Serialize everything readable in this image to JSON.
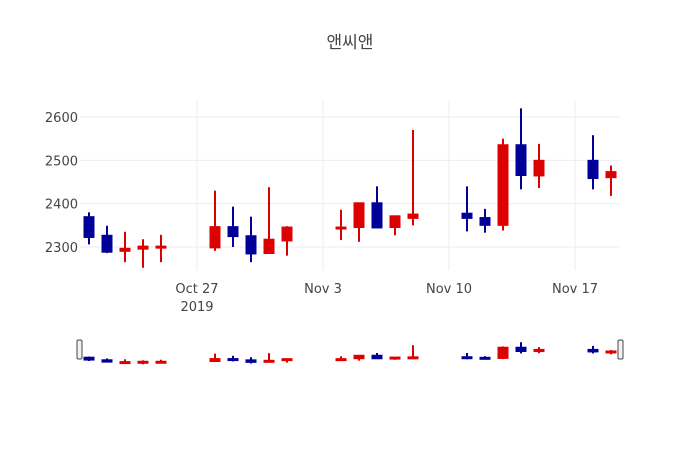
{
  "chart_data": {
    "type": "candlestick",
    "title": "앤씨앤",
    "xlabel": "",
    "ylabel": "",
    "ylim": [
      2230,
      2640
    ],
    "yticks": [
      2300,
      2400,
      2500,
      2600
    ],
    "xticks": [
      {
        "date": "2019-10-27",
        "label": "Oct 27",
        "sublabel": "2019"
      },
      {
        "date": "2019-11-03",
        "label": "Nov 3",
        "sublabel": ""
      },
      {
        "date": "2019-11-10",
        "label": "Nov 10",
        "sublabel": ""
      },
      {
        "date": "2019-11-17",
        "label": "Nov 17",
        "sublabel": ""
      }
    ],
    "xrange": [
      "2019-10-20.5",
      "2019-11-20.5"
    ],
    "grid": true,
    "legend": false,
    "rangeslider": true,
    "increasing_color": "#dd0000",
    "decreasing_color": "#000099",
    "candles": [
      {
        "date": "2019-10-21",
        "open": 2370,
        "high": 2380,
        "low": 2306,
        "close": 2322
      },
      {
        "date": "2019-10-22",
        "open": 2327,
        "high": 2349,
        "low": 2286,
        "close": 2288
      },
      {
        "date": "2019-10-23",
        "open": 2290,
        "high": 2335,
        "low": 2265,
        "close": 2297
      },
      {
        "date": "2019-10-24",
        "open": 2295,
        "high": 2318,
        "low": 2252,
        "close": 2302
      },
      {
        "date": "2019-10-25",
        "open": 2298,
        "high": 2328,
        "low": 2265,
        "close": 2302
      },
      {
        "date": "2019-10-28",
        "open": 2298,
        "high": 2430,
        "low": 2291,
        "close": 2347
      },
      {
        "date": "2019-10-29",
        "open": 2347,
        "high": 2393,
        "low": 2300,
        "close": 2324
      },
      {
        "date": "2019-10-30",
        "open": 2326,
        "high": 2370,
        "low": 2265,
        "close": 2284
      },
      {
        "date": "2019-10-31",
        "open": 2285,
        "high": 2438,
        "low": 2284,
        "close": 2318
      },
      {
        "date": "2019-11-01",
        "open": 2314,
        "high": 2348,
        "low": 2280,
        "close": 2346
      },
      {
        "date": "2019-11-04",
        "open": 2344,
        "high": 2386,
        "low": 2316,
        "close": 2346
      },
      {
        "date": "2019-11-05",
        "open": 2345,
        "high": 2402,
        "low": 2312,
        "close": 2402
      },
      {
        "date": "2019-11-06",
        "open": 2402,
        "high": 2440,
        "low": 2343,
        "close": 2344
      },
      {
        "date": "2019-11-07",
        "open": 2345,
        "high": 2372,
        "low": 2327,
        "close": 2372
      },
      {
        "date": "2019-11-08",
        "open": 2366,
        "high": 2570,
        "low": 2350,
        "close": 2376
      },
      {
        "date": "2019-11-11",
        "open": 2378,
        "high": 2440,
        "low": 2336,
        "close": 2366
      },
      {
        "date": "2019-11-12",
        "open": 2368,
        "high": 2388,
        "low": 2333,
        "close": 2350
      },
      {
        "date": "2019-11-13",
        "open": 2350,
        "high": 2550,
        "low": 2338,
        "close": 2536
      },
      {
        "date": "2019-11-14",
        "open": 2536,
        "high": 2620,
        "low": 2433,
        "close": 2465
      },
      {
        "date": "2019-11-15",
        "open": 2464,
        "high": 2538,
        "low": 2436,
        "close": 2500
      },
      {
        "date": "2019-11-18",
        "open": 2500,
        "high": 2558,
        "low": 2433,
        "close": 2458
      },
      {
        "date": "2019-11-19",
        "open": 2460,
        "high": 2488,
        "low": 2418,
        "close": 2474
      }
    ]
  }
}
